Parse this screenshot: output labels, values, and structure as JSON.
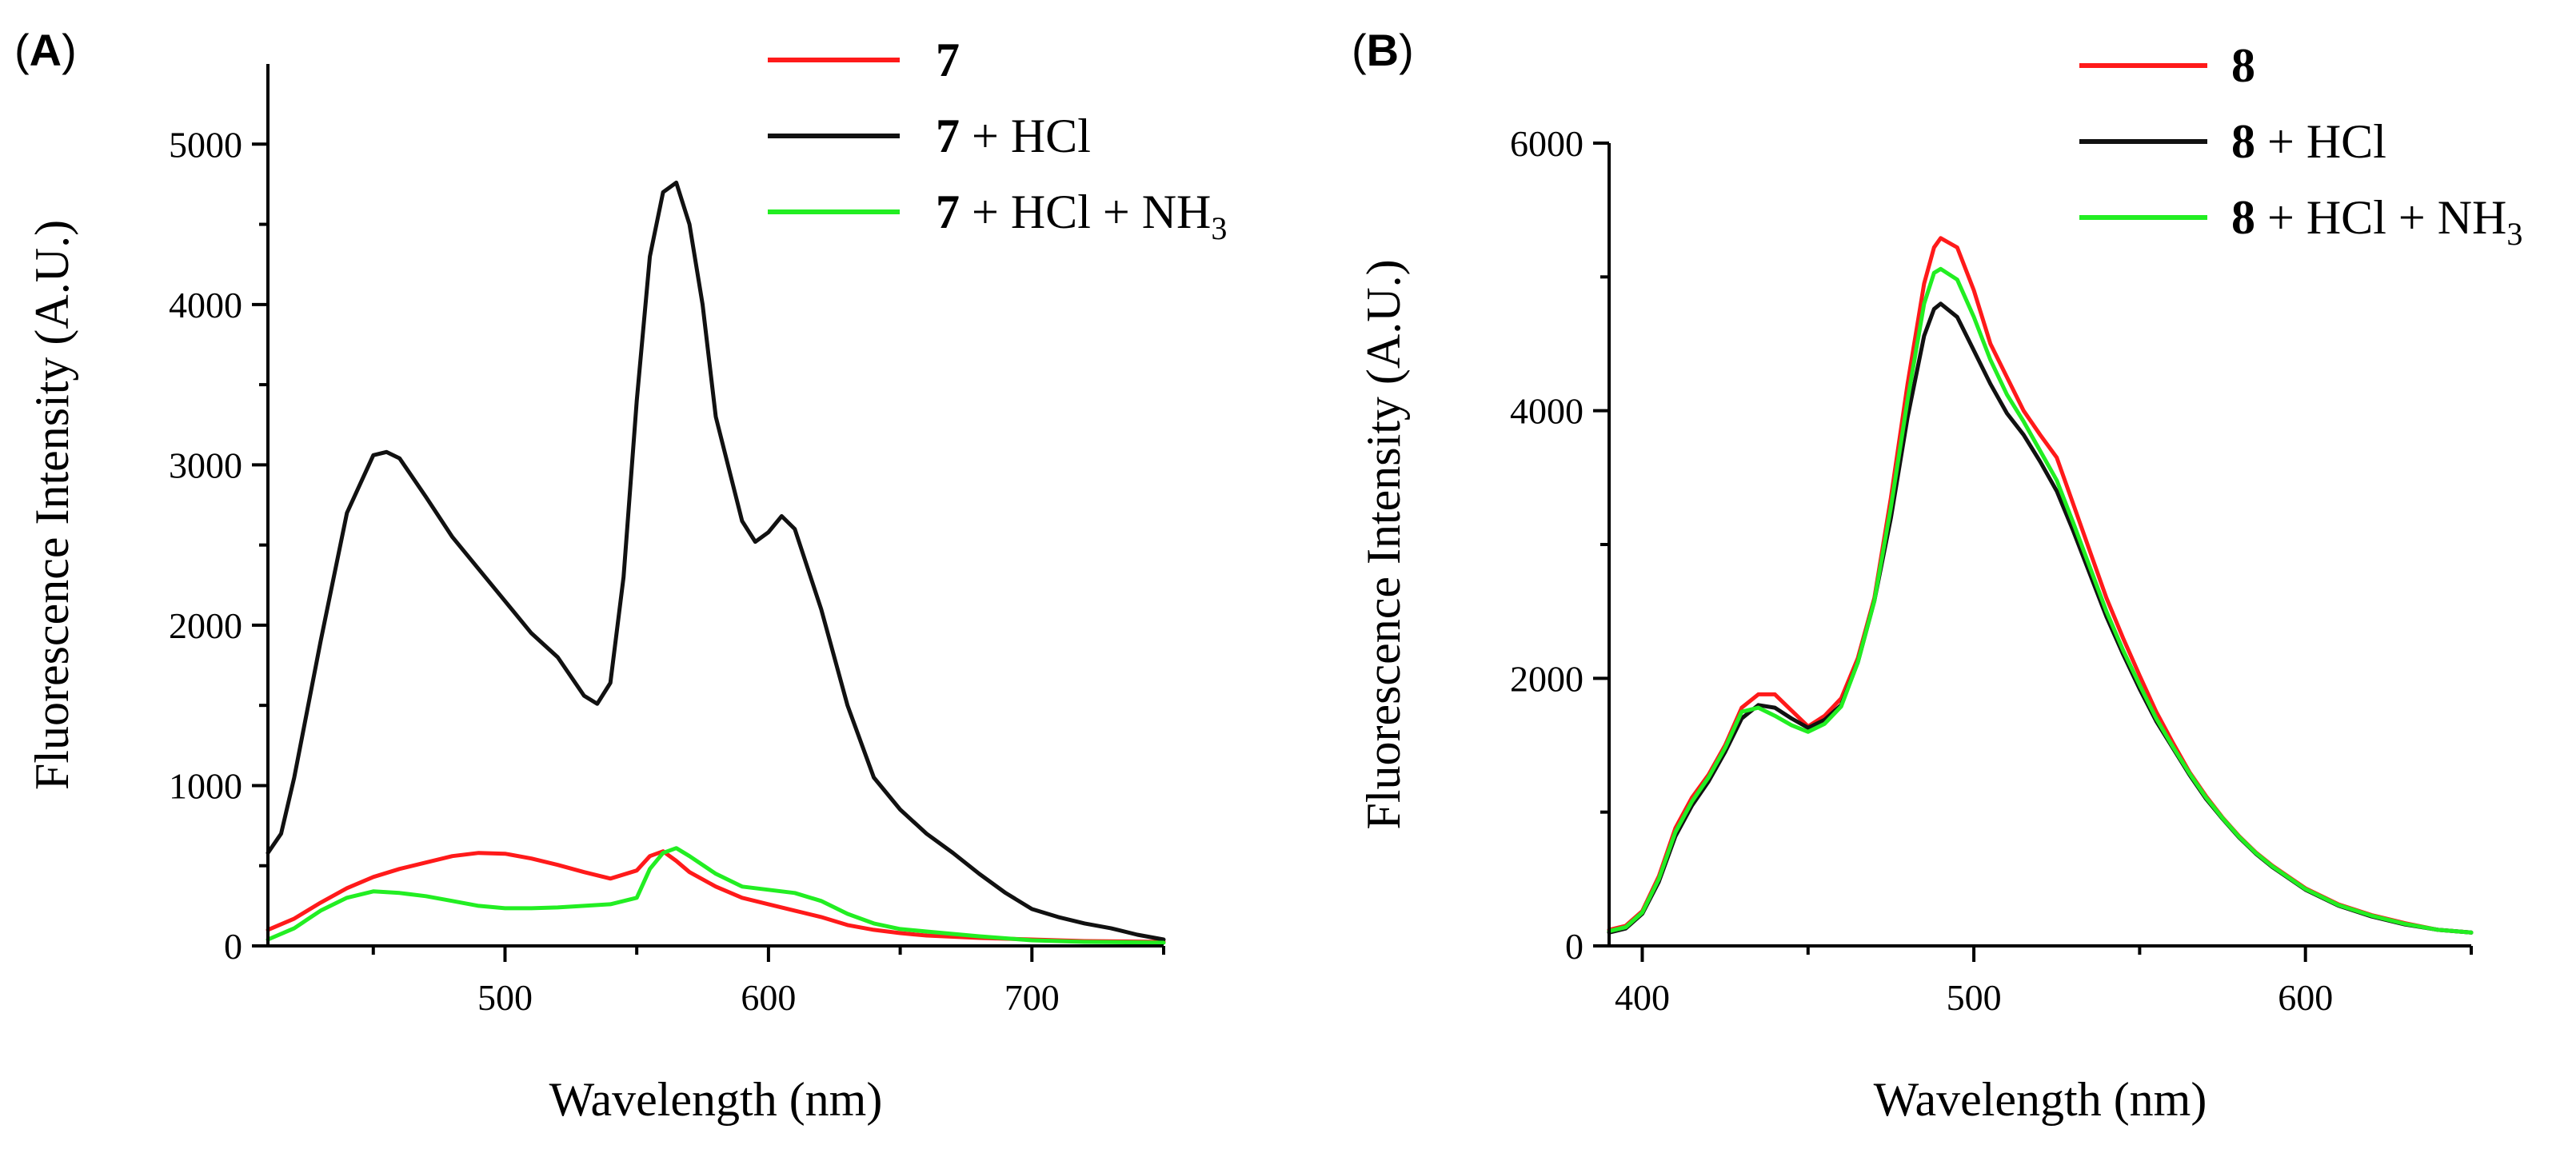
{
  "colors": {
    "red": "#ff1a1a",
    "black": "#111111",
    "green": "#22ee22"
  },
  "chart_data": [
    {
      "type": "line",
      "panel": "(A)",
      "xlabel": "Wavelength (nm)",
      "ylabel": "Fluorescence Intensity (A.U.)",
      "xlim": [
        410,
        750
      ],
      "ylim": [
        0,
        5500
      ],
      "xticks": [
        500,
        600,
        700
      ],
      "yticks": [
        0,
        1000,
        2000,
        3000,
        4000,
        5000
      ],
      "legend_position": "top-center",
      "series": [
        {
          "name": "7",
          "compound": "7",
          "suffix": "",
          "color": "#ff1a1a",
          "x": [
            410,
            420,
            430,
            440,
            450,
            460,
            470,
            480,
            490,
            500,
            510,
            520,
            530,
            540,
            550,
            555,
            560,
            565,
            570,
            580,
            590,
            600,
            610,
            620,
            630,
            640,
            650,
            660,
            680,
            700,
            720,
            750
          ],
          "y": [
            100,
            170,
            270,
            360,
            430,
            480,
            520,
            560,
            580,
            575,
            545,
            505,
            460,
            420,
            470,
            560,
            590,
            530,
            460,
            370,
            300,
            260,
            220,
            180,
            130,
            100,
            80,
            65,
            50,
            40,
            30,
            25
          ]
        },
        {
          "name": "7 + HCl",
          "compound": "7",
          "suffix": " + HCl",
          "color": "#111111",
          "x": [
            410,
            415,
            420,
            430,
            440,
            450,
            455,
            460,
            470,
            480,
            490,
            500,
            510,
            520,
            530,
            535,
            540,
            545,
            550,
            555,
            560,
            565,
            570,
            575,
            580,
            590,
            595,
            600,
            605,
            610,
            620,
            630,
            640,
            650,
            660,
            670,
            680,
            690,
            700,
            710,
            720,
            730,
            740,
            750
          ],
          "y": [
            580,
            700,
            1050,
            1900,
            2700,
            3060,
            3080,
            3040,
            2800,
            2550,
            2350,
            2150,
            1950,
            1800,
            1560,
            1510,
            1640,
            2300,
            3400,
            4300,
            4700,
            4760,
            4500,
            4000,
            3300,
            2650,
            2520,
            2580,
            2680,
            2600,
            2100,
            1500,
            1050,
            850,
            700,
            580,
            450,
            330,
            230,
            180,
            140,
            110,
            70,
            40
          ]
        },
        {
          "name": "7 + HCl + NH3",
          "compound": "7",
          "suffix": " + HCl + NH",
          "subscript": "3",
          "color": "#22ee22",
          "x": [
            410,
            420,
            430,
            440,
            450,
            460,
            470,
            480,
            490,
            500,
            510,
            520,
            530,
            540,
            550,
            555,
            560,
            565,
            570,
            580,
            590,
            600,
            610,
            620,
            630,
            640,
            650,
            660,
            680,
            700,
            720,
            750
          ],
          "y": [
            40,
            110,
            220,
            300,
            340,
            330,
            310,
            280,
            250,
            235,
            235,
            240,
            250,
            260,
            300,
            480,
            580,
            610,
            560,
            450,
            370,
            350,
            330,
            280,
            200,
            140,
            105,
            90,
            60,
            35,
            25,
            20
          ]
        }
      ]
    },
    {
      "type": "line",
      "panel": "(B)",
      "xlabel": "Wavelength (nm)",
      "ylabel": "Fluorescence Intensity (A.U.)",
      "xlim": [
        390,
        650
      ],
      "ylim": [
        0,
        6000
      ],
      "xticks": [
        400,
        500,
        600
      ],
      "yticks": [
        0,
        2000,
        4000,
        6000
      ],
      "legend_position": "top-right",
      "series": [
        {
          "name": "8",
          "compound": "8",
          "suffix": "",
          "color": "#ff1a1a",
          "x": [
            390,
            395,
            400,
            405,
            410,
            415,
            420,
            425,
            430,
            435,
            440,
            445,
            450,
            455,
            460,
            465,
            470,
            475,
            480,
            485,
            488,
            490,
            495,
            500,
            505,
            510,
            515,
            520,
            525,
            530,
            535,
            540,
            545,
            550,
            555,
            560,
            565,
            570,
            575,
            580,
            585,
            590,
            600,
            610,
            620,
            630,
            640,
            650
          ],
          "y": [
            120,
            150,
            260,
            520,
            880,
            1110,
            1280,
            1500,
            1780,
            1880,
            1880,
            1760,
            1640,
            1720,
            1850,
            2150,
            2600,
            3350,
            4200,
            4950,
            5220,
            5290,
            5220,
            4900,
            4500,
            4250,
            4000,
            3820,
            3650,
            3300,
            2950,
            2600,
            2300,
            2020,
            1750,
            1520,
            1300,
            1120,
            960,
            820,
            700,
            600,
            430,
            310,
            230,
            170,
            120,
            100
          ]
        },
        {
          "name": "8 + HCl",
          "compound": "8",
          "suffix": " + HCl",
          "color": "#111111",
          "x": [
            390,
            395,
            400,
            405,
            410,
            415,
            420,
            425,
            430,
            435,
            440,
            445,
            450,
            455,
            460,
            465,
            470,
            475,
            480,
            485,
            488,
            490,
            495,
            500,
            505,
            510,
            515,
            520,
            525,
            530,
            535,
            540,
            545,
            550,
            555,
            560,
            565,
            570,
            575,
            580,
            585,
            590,
            600,
            610,
            620,
            630,
            640,
            650
          ],
          "y": [
            100,
            130,
            240,
            480,
            820,
            1050,
            1230,
            1450,
            1700,
            1800,
            1780,
            1700,
            1630,
            1690,
            1800,
            2120,
            2580,
            3200,
            3950,
            4560,
            4760,
            4800,
            4700,
            4450,
            4200,
            3980,
            3820,
            3620,
            3400,
            3100,
            2780,
            2460,
            2180,
            1920,
            1680,
            1480,
            1280,
            1100,
            950,
            810,
            690,
            590,
            420,
            300,
            220,
            160,
            120,
            100
          ]
        },
        {
          "name": "8 + HCl + NH3",
          "compound": "8",
          "suffix": " + HCl + NH",
          "subscript": "3",
          "color": "#22ee22",
          "x": [
            390,
            395,
            400,
            405,
            410,
            415,
            420,
            425,
            430,
            435,
            440,
            445,
            450,
            455,
            460,
            465,
            470,
            475,
            480,
            485,
            488,
            490,
            495,
            500,
            505,
            510,
            515,
            520,
            525,
            530,
            535,
            540,
            545,
            550,
            555,
            560,
            565,
            570,
            575,
            580,
            585,
            590,
            600,
            610,
            620,
            630,
            640,
            650
          ],
          "y": [
            110,
            140,
            250,
            500,
            850,
            1080,
            1260,
            1480,
            1750,
            1780,
            1720,
            1650,
            1600,
            1660,
            1790,
            2120,
            2580,
            3280,
            4080,
            4800,
            5030,
            5060,
            4980,
            4700,
            4380,
            4120,
            3920,
            3700,
            3480,
            3160,
            2830,
            2500,
            2210,
            1950,
            1700,
            1490,
            1290,
            1110,
            955,
            815,
            695,
            595,
            425,
            305,
            225,
            165,
            120,
            100
          ]
        }
      ]
    }
  ]
}
